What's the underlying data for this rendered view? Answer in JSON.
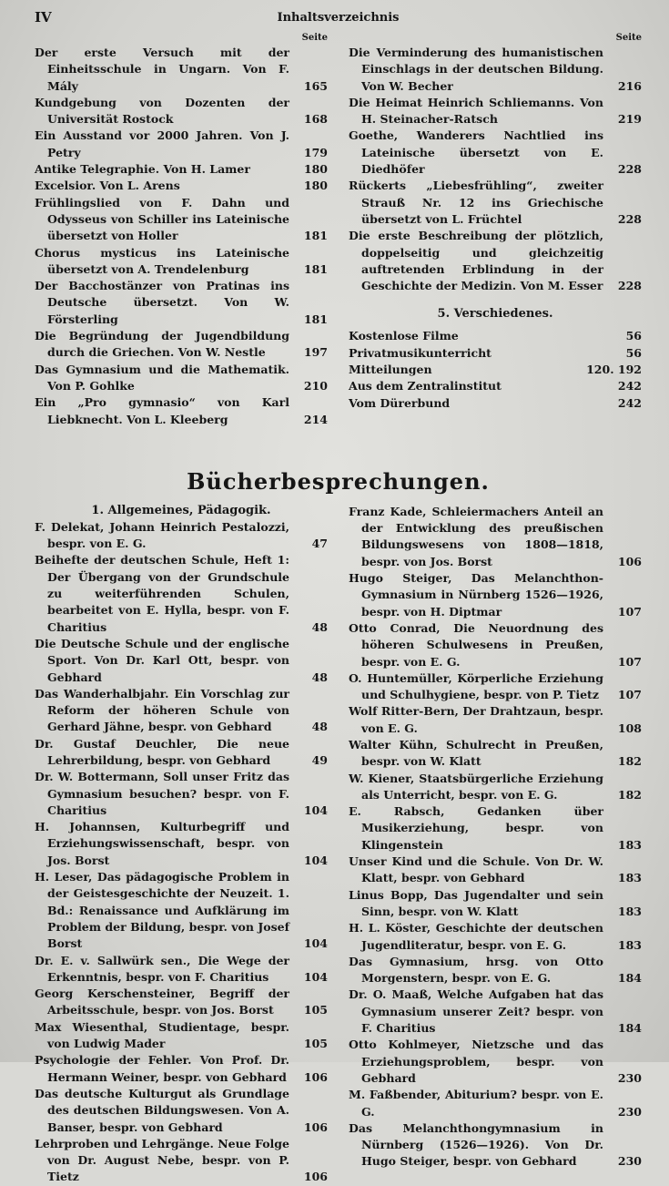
{
  "header": {
    "page_number": "IV",
    "title": "Inhaltsverzeichnis"
  },
  "articles": {
    "left": {
      "page_label": "Seite",
      "entries": [
        {
          "text": "Der erste Versuch mit der Einheitsschule in Ungarn. Von F. Mály",
          "page": 165
        },
        {
          "text": "Kundgebung von Dozenten der Universität Rostock",
          "page": 168
        },
        {
          "text": "Ein Ausstand vor 2000 Jahren. Von J. Petry",
          "page": 179
        },
        {
          "text": "Antike Telegraphie. Von H. Lamer",
          "page": 180
        },
        {
          "text": "Excelsior. Von L. Arens",
          "page": 180
        },
        {
          "text": "Frühlingslied von F. Dahn und Odysseus von Schiller ins Lateinische übersetzt von Holler",
          "page": 181
        },
        {
          "text": "Chorus mysticus ins Lateinische übersetzt von A. Trendelenburg",
          "page": 181
        },
        {
          "text": "Der Bacchostänzer von Pratinas ins Deutsche übersetzt. Von W. Försterling",
          "page": 181
        },
        {
          "text": "Die Begründung der Jugendbildung durch die Griechen. Von W. Nestle",
          "page": 197
        },
        {
          "text": "Das Gymnasium und die Mathematik. Von P. Gohlke",
          "page": 210
        },
        {
          "text": "Ein „Pro gymnasio“ von Karl Liebknecht. Von L. Kleeberg",
          "page": 214
        }
      ]
    },
    "right": {
      "page_label": "Seite",
      "entries": [
        {
          "text": "Die Verminderung des humanistischen Einschlags in der deutschen Bildung. Von W. Becher",
          "page": 216
        },
        {
          "text": "Die Heimat Heinrich Schliemanns. Von H. Steinacher-Ratsch",
          "page": 219
        },
        {
          "text": "Goethe, Wanderers Nachtlied ins Lateinische übersetzt von E. Diedhöfer",
          "page": 228
        },
        {
          "text": "Rückerts „Liebesfrühling“, zweiter Strauß Nr. 12 ins Griechische übersetzt von L. Früchtel",
          "page": 228
        },
        {
          "text": "Die erste Beschreibung der plötzlich, doppelseitig und gleichzeitig auftretenden Erblindung in der Geschichte der Medizin. Von M. Esser",
          "page": 228
        }
      ]
    }
  },
  "miscellaneous": {
    "heading": "5. Verschiedenes.",
    "entries": [
      {
        "text": "Kostenlose Filme",
        "page": 56
      },
      {
        "text": "Privatmusikunterricht",
        "page": 56
      },
      {
        "text": "Mitteilungen",
        "page": "120. 192"
      },
      {
        "text": "Aus dem Zentralinstitut",
        "page": 242
      },
      {
        "text": "Vom Dürerbund",
        "page": 242
      }
    ]
  },
  "reviews": {
    "heading": "Bücherbesprechungen.",
    "left": {
      "heading": "1. Allgemeines, Pädagogik.",
      "entries": [
        {
          "text": "F. Delekat, Johann Heinrich Pestalozzi, bespr. von E. G.",
          "page": 47
        },
        {
          "text": "Beihefte der deutschen Schule, Heft 1: Der Übergang von der Grundschule zu weiterführenden Schulen, bearbeitet von E. Hylla, bespr. von F. Charitius",
          "page": 48
        },
        {
          "text": "Die Deutsche Schule und der englische Sport. Von Dr. Karl Ott, bespr. von Gebhard",
          "page": 48
        },
        {
          "text": "Das Wanderhalbjahr. Ein Vorschlag zur Reform der höheren Schule von Gerhard Jähne, bespr. von Gebhard",
          "page": 48
        },
        {
          "text": "Dr. Gustaf Deuchler, Die neue Lehrerbildung, bespr. von Gebhard",
          "page": 49
        },
        {
          "text": "Dr. W. Bottermann, Soll unser Fritz das Gymnasium besuchen? bespr. von F. Charitius",
          "page": 104
        },
        {
          "text": "H. Johannsen, Kulturbegriff und Erziehungswissenschaft, bespr. von Jos. Borst",
          "page": 104
        },
        {
          "text": "H. Leser, Das pädagogische Problem in der Geistesgeschichte der Neuzeit. 1. Bd.: Renaissance und Aufklärung im Problem der Bildung, bespr. von Josef Borst",
          "page": 104
        },
        {
          "text": "Dr. E. v. Sallwürk sen., Die Wege der Erkenntnis, bespr. von F. Charitius",
          "page": 104
        },
        {
          "text": "Georg Kerschensteiner, Begriff der Arbeitsschule, bespr. von Jos. Borst",
          "page": 105
        },
        {
          "text": "Max Wiesenthal, Studientage, bespr. von Ludwig Mader",
          "page": 105
        },
        {
          "text": "Psychologie der Fehler. Von Prof. Dr. Hermann Weiner, bespr. von Gebhard",
          "page": 106
        },
        {
          "text": "Das deutsche Kulturgut als Grundlage des deutschen Bildungswesen. Von A. Banser, bespr. von Gebhard",
          "page": 106
        },
        {
          "text": "Lehrproben und Lehrgänge. Neue Folge von Dr. August Nebe, bespr. von P. Tietz",
          "page": 106
        }
      ]
    },
    "right": {
      "entries": [
        {
          "text": "Franz Kade, Schleiermachers Anteil an der Entwicklung des preußischen Bildungswesens von 1808—1818, bespr. von Jos. Borst",
          "page": 106
        },
        {
          "text": "Hugo Steiger, Das Melanchthon-Gymnasium in Nürnberg 1526—1926, bespr. von H. Diptmar",
          "page": 107
        },
        {
          "text": "Otto Conrad, Die Neuordnung des höheren Schulwesens in Preußen, bespr. von E. G.",
          "page": 107
        },
        {
          "text": "O. Huntemüller, Körperliche Erziehung und Schulhygiene, bespr. von P. Tietz",
          "page": 107
        },
        {
          "text": "Wolf Ritter-Bern, Der Drahtzaun, bespr. von E. G.",
          "page": 108
        },
        {
          "text": "Walter Kühn, Schulrecht in Preußen, bespr. von W. Klatt",
          "page": 182
        },
        {
          "text": "W. Kiener, Staatsbürgerliche Erziehung als Unterricht, bespr. von E. G.",
          "page": 182
        },
        {
          "text": "E. Rabsch, Gedanken über Musikerziehung, bespr. von Klingenstein",
          "page": 183
        },
        {
          "text": "Unser Kind und die Schule. Von Dr. W. Klatt, bespr. von Gebhard",
          "page": 183
        },
        {
          "text": "Linus Bopp, Das Jugendalter und sein Sinn, bespr. von W. Klatt",
          "page": 183
        },
        {
          "text": "H. L. Köster, Geschichte der deutschen Jugendliteratur, bespr. von E. G.",
          "page": 183
        },
        {
          "text": "Das Gymnasium, hrsg. von Otto Morgenstern, bespr. von E. G.",
          "page": 184
        },
        {
          "text": "Dr. O. Maaß, Welche Aufgaben hat das Gymnasium unserer Zeit? bespr. von F. Charitius",
          "page": 184
        },
        {
          "text": "Otto Kohlmeyer, Nietzsche und das Erziehungsproblem, bespr. von Gebhard",
          "page": 230
        },
        {
          "text": "M. Faßbender, Abiturium? bespr. von E. G.",
          "page": 230
        },
        {
          "text": "Das Melanchthongymnasium in Nürnberg (1526—1926). Von Dr. Hugo Steiger, bespr. von Gebhard",
          "page": 230
        }
      ]
    }
  }
}
